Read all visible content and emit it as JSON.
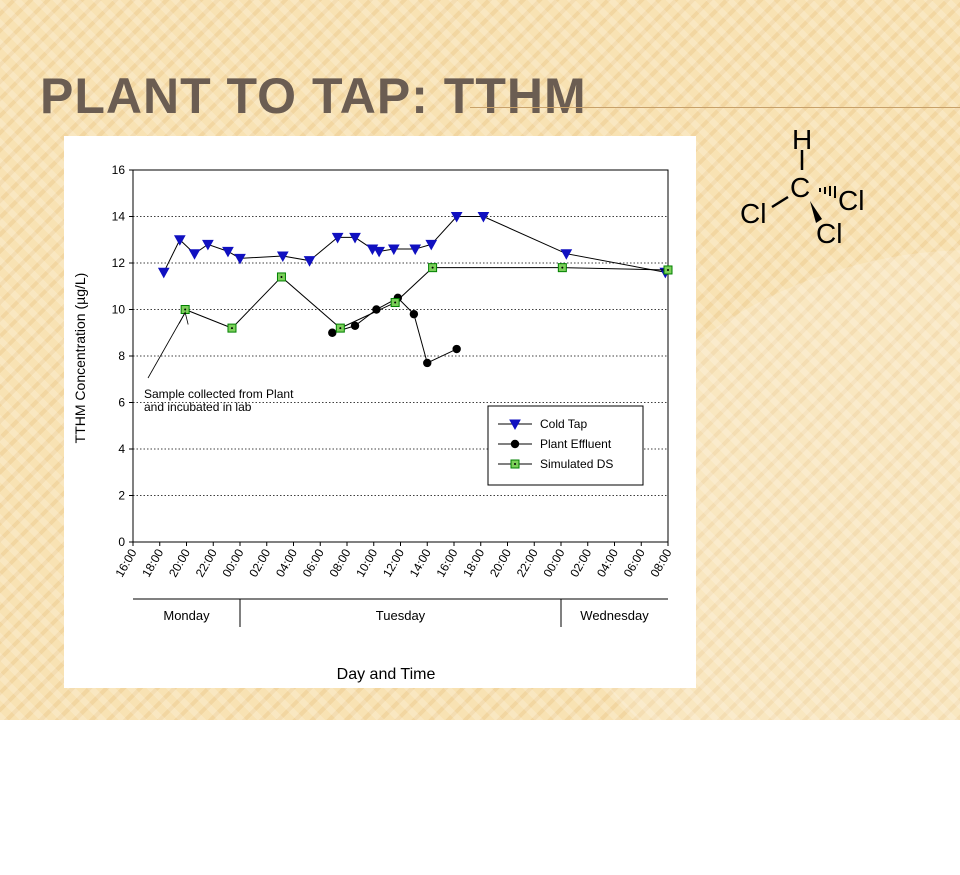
{
  "slide": {
    "title": "Plant to Tap: TTHM",
    "molecule": {
      "atoms": [
        "H",
        "C",
        "Cl",
        "Cl",
        "Cl"
      ]
    }
  },
  "chart_data": {
    "type": "line",
    "xlabel": "Day and Time",
    "ylabel": "TTHM Concentration (µg/L)",
    "ylim": [
      0,
      16
    ],
    "yticks": [
      0,
      2,
      4,
      6,
      8,
      10,
      12,
      14,
      16
    ],
    "xlim_hours": [
      0,
      40
    ],
    "x_ticks": [
      "16:00",
      "18:00",
      "20:00",
      "22:00",
      "00:00",
      "02:00",
      "04:00",
      "06:00",
      "08:00",
      "10:00",
      "12:00",
      "14:00",
      "16:00",
      "18:00",
      "20:00",
      "22:00",
      "00:00",
      "02:00",
      "04:00",
      "06:00",
      "08:00"
    ],
    "day_bands": [
      {
        "label": "Monday",
        "start": 0,
        "end": 8
      },
      {
        "label": "Tuesday",
        "start": 8,
        "end": 32
      },
      {
        "label": "Wednesday",
        "start": 32,
        "end": 40
      }
    ],
    "grid": true,
    "legend_position": "lower-right",
    "annotation": {
      "text_lines": [
        "Sample collected from Plant",
        "and incubated in lab"
      ],
      "target_x": 3.9,
      "target_y": 10.0
    },
    "series": [
      {
        "name": "Cold Tap",
        "marker": "triangle-down",
        "color": "#1010c0",
        "x": [
          2.3,
          3.5,
          4.6,
          5.6,
          7.1,
          8.0,
          11.2,
          13.2,
          15.3,
          16.6,
          17.9,
          18.4,
          19.5,
          21.1,
          22.3,
          24.2,
          26.2,
          32.4,
          39.8
        ],
        "y": [
          11.6,
          13.0,
          12.4,
          12.8,
          12.5,
          12.2,
          12.3,
          12.1,
          13.1,
          13.1,
          12.6,
          12.5,
          12.6,
          12.6,
          12.8,
          14.0,
          14.0,
          12.4,
          11.6
        ]
      },
      {
        "name": "Plant Effluent",
        "marker": "circle",
        "color": "#000000",
        "x": [
          14.9,
          16.6,
          18.2,
          19.8,
          21.0,
          22.0,
          24.2
        ],
        "y": [
          9.0,
          9.3,
          10.0,
          10.5,
          9.8,
          7.7,
          8.3
        ]
      },
      {
        "name": "Simulated DS",
        "marker": "square",
        "color": "#008000",
        "fill": "#7ccf5a",
        "x": [
          3.9,
          7.4,
          11.1,
          15.5,
          19.6,
          22.4,
          32.1,
          40.0
        ],
        "y": [
          10.0,
          9.2,
          11.4,
          9.2,
          10.3,
          11.8,
          11.8,
          11.7
        ]
      }
    ]
  }
}
